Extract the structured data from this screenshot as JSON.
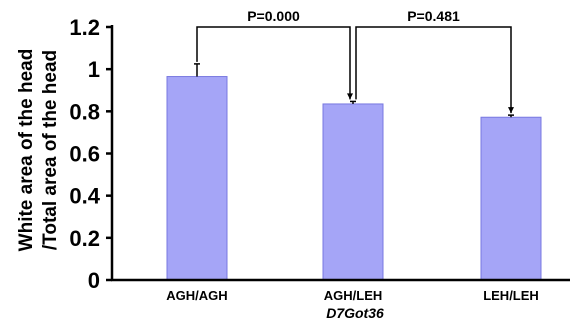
{
  "chart_data": {
    "type": "bar",
    "categories": [
      "AGH/AGH",
      "AGH/LEH",
      "LEH/LEH"
    ],
    "values": [
      0.965,
      0.835,
      0.772
    ],
    "errors": [
      0.06,
      0.012,
      0.01
    ],
    "bar_color": "#a5a5f7",
    "bar_edge_color": "#7878e0",
    "ylim": [
      0,
      1.2
    ],
    "yticks": [
      "0",
      "0.2",
      "0.4",
      "0.6",
      "0.8",
      "1",
      "1.2"
    ],
    "ylabel_lines": [
      "White area of the head",
      "/Total area of the head"
    ],
    "xlabel": "D7Got36",
    "annotations": [
      {
        "text": "P=0.000",
        "from": 0,
        "to": 1
      },
      {
        "text": "P=0.481",
        "from": 1,
        "to": 2
      }
    ]
  }
}
